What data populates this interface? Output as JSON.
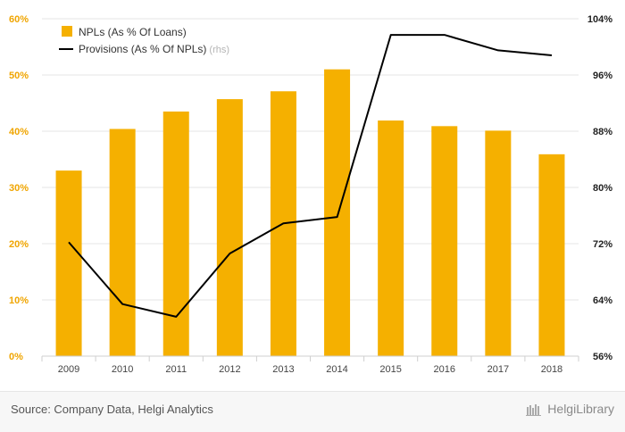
{
  "chart_data": {
    "type": "bar",
    "categories": [
      "2009",
      "2010",
      "2011",
      "2012",
      "2013",
      "2014",
      "2015",
      "2016",
      "2017",
      "2018"
    ],
    "series": [
      {
        "name": "NPLs (As % Of Loans)",
        "type": "bar",
        "axis": "left",
        "values": [
          33.0,
          40.4,
          43.5,
          45.7,
          47.1,
          51.0,
          41.9,
          40.9,
          40.1,
          35.9
        ]
      },
      {
        "name": "Provisions (As % Of NPLs)",
        "type": "line",
        "axis": "right",
        "values": [
          72.2,
          63.4,
          61.6,
          70.6,
          74.9,
          75.8,
          101.7,
          101.7,
          99.5,
          98.8
        ]
      }
    ],
    "legend": {
      "bar_label": "NPLs (As % Of Loans)",
      "line_label": "Provisions (As % Of NPLs)",
      "line_suffix": "(rhs)",
      "position": "top-left"
    },
    "y_left": {
      "range": [
        0,
        60
      ],
      "ticks": [
        "0%",
        "10%",
        "20%",
        "30%",
        "40%",
        "50%",
        "60%"
      ]
    },
    "y_right": {
      "range": [
        56,
        104
      ],
      "ticks": [
        "56%",
        "64%",
        "72%",
        "80%",
        "88%",
        "96%",
        "104%"
      ]
    },
    "grid": true,
    "colors": {
      "bar": "#f5b000",
      "line": "#000000",
      "left_ticks": "#f0a500",
      "right_ticks": "#222222",
      "grid": "#e6e6e6"
    }
  },
  "footer": {
    "source": "Source: Company Data, Helgi Analytics",
    "brand": "HelgiLibrary"
  }
}
